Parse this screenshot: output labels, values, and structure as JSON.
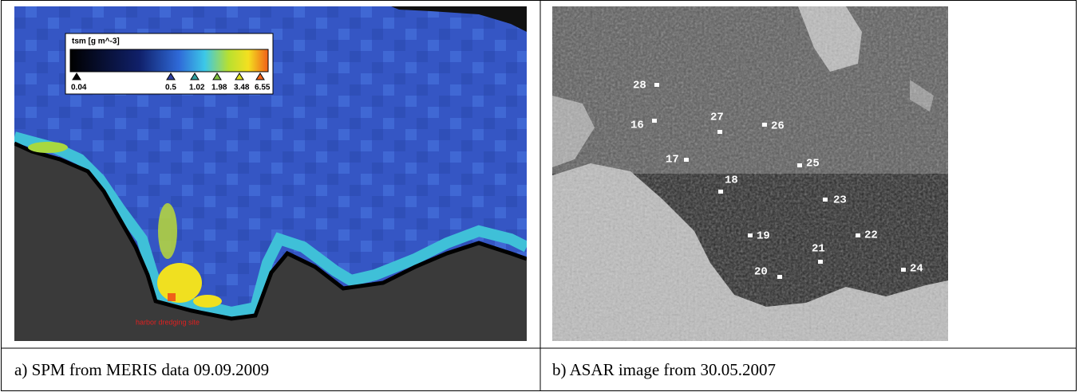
{
  "figures": [
    {
      "caption": "a) SPM from MERIS data 09.09.2009",
      "image": {
        "legend_title": "tsm [g m^-3]",
        "legend_ticks": [
          "0.04",
          "0.5",
          "1.02",
          "1.98",
          "3.48",
          "6.55"
        ],
        "annotation": "harbor dredging site"
      }
    },
    {
      "caption": "b) ASAR image from 30.05.2007",
      "image": {
        "points": [
          "28",
          "16",
          "27",
          "26",
          "17",
          "25",
          "18",
          "23",
          "19",
          "22",
          "21",
          "20",
          "24"
        ]
      }
    }
  ]
}
